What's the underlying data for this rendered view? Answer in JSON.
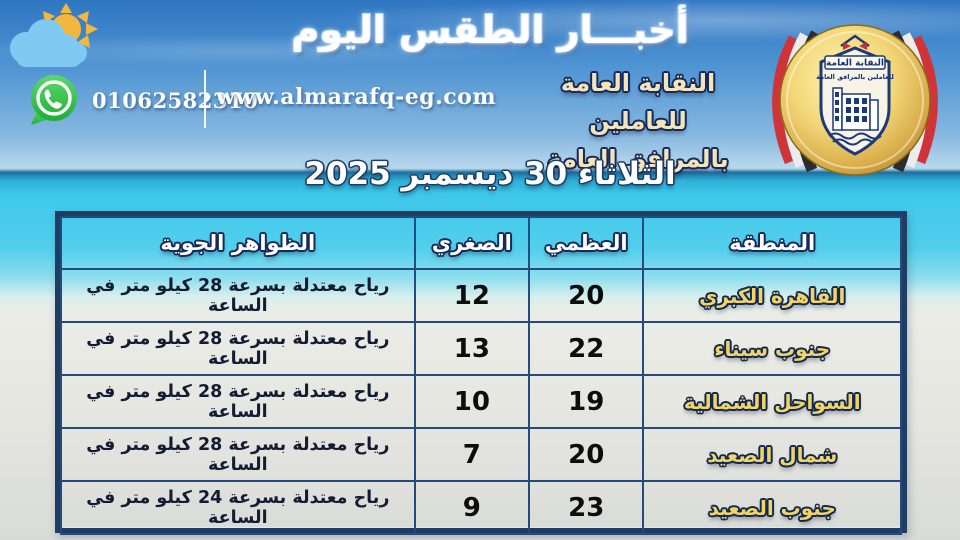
{
  "header": {
    "title": "أخبـــار الطقس اليوم",
    "phone": "01062582310",
    "website": "www.almarafq-eg.com",
    "syndicate_line1": "النقابة العامة للعاملين",
    "syndicate_line2": "بالمرافق العامة",
    "logo_banner_text": "النقابة العامة",
    "logo_sub_text": "للعاملين بالمرافق العامة"
  },
  "date_line": "الثلاثاء 30 ديسمبر 2025",
  "table": {
    "columns": [
      {
        "key": "region",
        "label": "المنطقة"
      },
      {
        "key": "max",
        "label": "العظمي"
      },
      {
        "key": "min",
        "label": "الصغري"
      },
      {
        "key": "phenomena",
        "label": "الظواهر الجوية"
      }
    ],
    "rows": [
      {
        "region": "القاهرة الكبري",
        "max": "20",
        "min": "12",
        "phenomena": "رياح معتدلة بسرعة 28 كيلو متر في الساعة"
      },
      {
        "region": "جنوب سيناء",
        "max": "22",
        "min": "13",
        "phenomena": "رياح معتدلة بسرعة 28 كيلو متر في الساعة"
      },
      {
        "region": "السواحل الشمالية",
        "max": "19",
        "min": "10",
        "phenomena": "رياح معتدلة بسرعة 28 كيلو متر في الساعة"
      },
      {
        "region": "شمال الصعيد",
        "max": "20",
        "min": "7",
        "phenomena": "رياح معتدلة بسرعة 28 كيلو متر في الساعة"
      },
      {
        "region": "جنوب الصعيد",
        "max": "23",
        "min": "9",
        "phenomena": "رياح معتدلة بسرعة 24 كيلو متر في الساعة"
      }
    ]
  },
  "colors": {
    "sky_top": "#2f76c2",
    "sea": "#3ec8ea",
    "sand": "#e7e7e2",
    "table_border": "#1f3c62",
    "cell_border": "#254a7e",
    "region_text": "#f2d368",
    "outline_navy": "#16295a",
    "syndicate_text": "#f2e5bc",
    "logo_gold": "#f3d879",
    "whatsapp_green": "#2dbb44"
  }
}
